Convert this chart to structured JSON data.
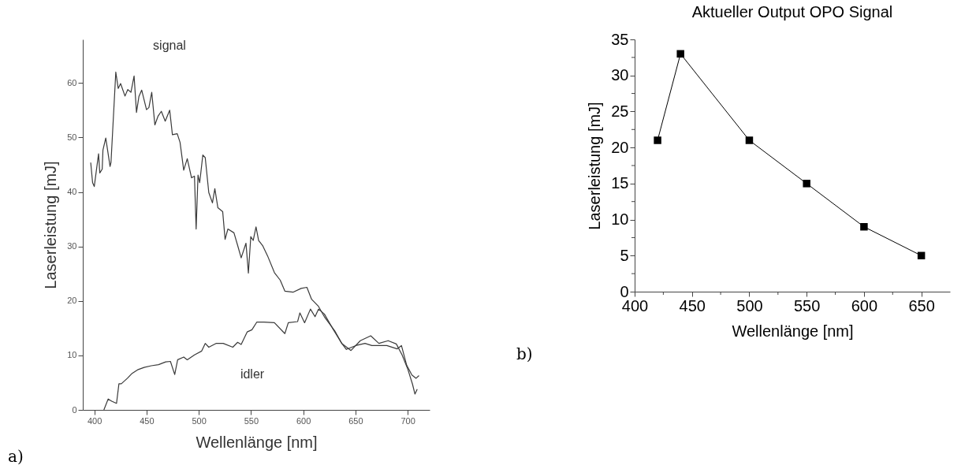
{
  "chart_data": [
    {
      "type": "line",
      "xlabel": "Wellenlänge [nm]",
      "ylabel": "Laserleistung [mJ]",
      "xlim": [
        389,
        721
      ],
      "ylim": [
        0,
        68
      ],
      "xticks": [
        400,
        450,
        500,
        550,
        600,
        650,
        700
      ],
      "yticks": [
        0,
        10,
        20,
        30,
        40,
        50,
        60
      ],
      "grid": false,
      "series": [
        {
          "color": "#3a3a3a",
          "x": [
            396.6,
            398.4,
            400,
            404.1,
            405.3,
            407.6,
            408.3,
            411,
            415.1,
            416,
            420.6,
            422.9,
            425.2,
            429.4,
            432.1,
            435.1,
            438.1,
            440.4,
            442.7,
            445.4,
            450,
            452.3,
            455,
            458,
            461,
            464.2,
            467.9,
            472.2,
            474.8,
            479.4,
            482.1,
            485.6,
            489,
            493.1,
            495.9,
            497.5,
            499.3,
            500.9,
            503.9,
            506.2,
            509.6,
            513.1,
            515.4,
            518.3,
            522.9,
            525.2,
            527.9,
            533.7,
            537.2,
            540.6,
            545.2,
            547.5,
            549.8,
            552.1,
            554.8,
            557.3,
            561.3,
            565.8,
            572.4,
            578,
            582.4,
            590.2,
            598,
            603.5,
            608,
            614.6,
            620.2,
            630.2,
            636.9,
            641.3,
            650.2,
            659.1,
            665.7,
            680,
            690,
            694,
            699,
            704,
            708,
            710.8
          ],
          "values": [
            45.4,
            41.7,
            41.0,
            47.0,
            43.5,
            44.2,
            47.7,
            49.9,
            44.7,
            45.4,
            62.0,
            59.0,
            59.9,
            57.6,
            58.8,
            58.3,
            61.3,
            54.6,
            57.5,
            58.7,
            55.1,
            55.5,
            58.3,
            52.3,
            53.9,
            54.8,
            53.0,
            55.0,
            50.5,
            50.7,
            49.1,
            44.0,
            46.1,
            42.6,
            42.9,
            33.2,
            43.1,
            41.7,
            46.8,
            46.3,
            39.9,
            38.0,
            40.6,
            37.1,
            36.4,
            31.3,
            33.2,
            32.5,
            30.2,
            27.9,
            30.6,
            25.1,
            31.8,
            31.1,
            33.6,
            31.1,
            30.1,
            28.3,
            25.2,
            23.8,
            21.8,
            21.6,
            22.3,
            22.5,
            20.3,
            19.0,
            17.1,
            14.5,
            12.2,
            11.1,
            11.8,
            12.2,
            11.8,
            11.8,
            11.2,
            11.8,
            8.2,
            6.4,
            5.8,
            6.3
          ]
        },
        {
          "color": "#3a3a3a",
          "x": [
            409.2,
            413.3,
            416.7,
            421.3,
            423.6,
            425.9,
            431.7,
            436.2,
            442,
            447.7,
            454.6,
            461.5,
            468.3,
            472.9,
            477,
            479.8,
            485.6,
            489,
            495.9,
            502.8,
            506.2,
            509.6,
            516.5,
            523.4,
            532.6,
            537.2,
            540.6,
            546.3,
            550.9,
            555.5,
            562.4,
            572.4,
            582.4,
            585.7,
            594.6,
            596.8,
            601.3,
            606.9,
            611.3,
            614.6,
            620.2,
            628,
            636.9,
            645.7,
            654.6,
            664.6,
            672.4,
            681.3,
            689.1,
            694.6,
            700.2,
            704.6,
            706.9,
            709.1
          ],
          "values": [
            0,
            2.0,
            1.6,
            1.2,
            4.8,
            4.8,
            5.8,
            6.7,
            7.4,
            7.8,
            8.1,
            8.3,
            8.8,
            8.9,
            6.5,
            9.2,
            9.7,
            9.2,
            10.1,
            10.8,
            12.2,
            11.5,
            12.2,
            12.2,
            11.5,
            12.4,
            12.0,
            14.3,
            14.7,
            16.1,
            16.1,
            16.0,
            14.0,
            16.0,
            16.2,
            17.8,
            16.0,
            18.5,
            17.1,
            18.5,
            17.6,
            15.0,
            12.2,
            10.9,
            12.7,
            13.6,
            12.2,
            12.7,
            12.1,
            10.1,
            7.4,
            4.7,
            2.9,
            3.8
          ]
        }
      ],
      "annotations": [
        "signal",
        "idler",
        "a)"
      ]
    },
    {
      "type": "line",
      "title": "Aktueller Output OPO Signal",
      "xlabel": "Wellenlänge [nm]",
      "ylabel": "Laserleistung [mJ]",
      "xlim": [
        400,
        675
      ],
      "ylim": [
        0,
        35
      ],
      "xticks": [
        400,
        {
          "value": 425,
          "label": null
        },
        450,
        {
          "value": 475,
          "label": null
        },
        500,
        {
          "value": 525,
          "label": null
        },
        550,
        {
          "value": 575,
          "label": null
        },
        600,
        {
          "value": 625,
          "label": null
        },
        650
      ],
      "yticks": [
        0,
        {
          "value": 2.5,
          "label": null
        },
        5,
        {
          "value": 7.5,
          "label": null
        },
        10,
        {
          "value": 12.5,
          "label": null
        },
        15,
        {
          "value": 17.5,
          "label": null
        },
        20,
        {
          "value": 22.5,
          "label": null
        },
        25,
        {
          "value": 27.5,
          "label": null
        },
        30,
        {
          "value": 32.5,
          "label": null
        },
        35
      ],
      "grid": false,
      "marker": "square",
      "line_style": "solid",
      "x": [
        420,
        440,
        500,
        550,
        600,
        650
      ],
      "series": [
        {
          "color": "#000000",
          "values": [
            21,
            33,
            21,
            15,
            9,
            5
          ]
        }
      ],
      "annotations": [
        "b)"
      ]
    }
  ]
}
